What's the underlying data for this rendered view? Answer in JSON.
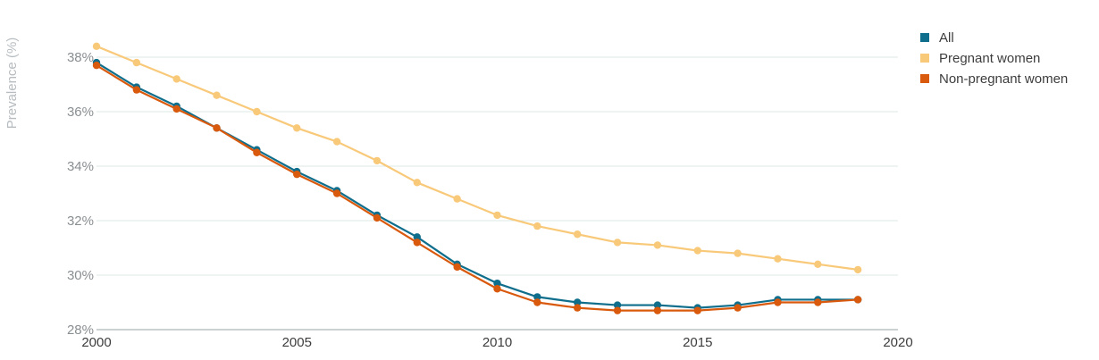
{
  "chart_data": {
    "type": "line",
    "title": "",
    "xlabel": "",
    "ylabel": "Prevalence (%)",
    "xlim": [
      2000,
      2020
    ],
    "ylim": [
      28,
      39
    ],
    "x_ticks": [
      2000,
      2005,
      2010,
      2015,
      2020
    ],
    "y_ticks": [
      28,
      30,
      32,
      34,
      36,
      38
    ],
    "y_tick_labels": [
      "28%",
      "30%",
      "32%",
      "34%",
      "36%",
      "38%"
    ],
    "grid": true,
    "legend_position": "top-right",
    "x": [
      2000,
      2001,
      2002,
      2003,
      2004,
      2005,
      2006,
      2007,
      2008,
      2009,
      2010,
      2011,
      2012,
      2013,
      2014,
      2015,
      2016,
      2017,
      2018,
      2019
    ],
    "series": [
      {
        "name": "All",
        "color": "#0f6e8c",
        "values": [
          37.8,
          36.9,
          36.2,
          35.4,
          34.6,
          33.8,
          33.1,
          32.2,
          31.4,
          30.4,
          29.7,
          29.2,
          29.0,
          28.9,
          28.9,
          28.8,
          28.9,
          29.1,
          29.1,
          29.1
        ]
      },
      {
        "name": "Pregnant women",
        "color": "#f9c97a",
        "values": [
          38.4,
          37.8,
          37.2,
          36.6,
          36.0,
          35.4,
          34.9,
          34.2,
          33.4,
          32.8,
          32.2,
          31.8,
          31.5,
          31.2,
          31.1,
          30.9,
          30.8,
          30.6,
          30.4,
          30.2
        ]
      },
      {
        "name": "Non-pregnant women",
        "color": "#d9590d",
        "values": [
          37.7,
          36.8,
          36.1,
          35.4,
          34.5,
          33.7,
          33.0,
          32.1,
          31.2,
          30.3,
          29.5,
          29.0,
          28.8,
          28.7,
          28.7,
          28.7,
          28.8,
          29.0,
          29.0,
          29.1
        ]
      }
    ]
  }
}
